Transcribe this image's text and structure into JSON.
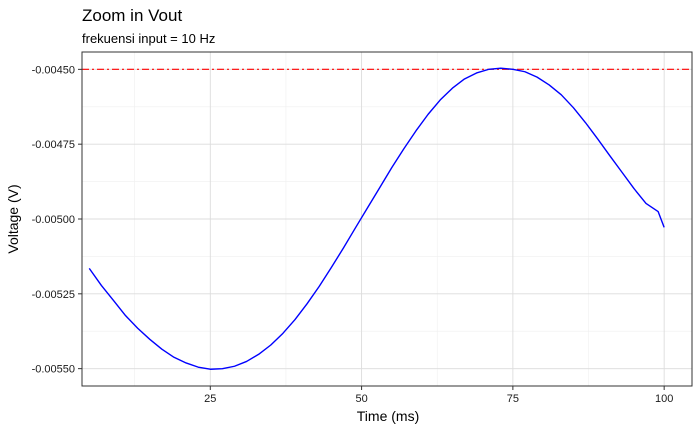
{
  "chart_data": {
    "type": "line",
    "title": "Zoom in Vout",
    "subtitle": "frekuensi input = 10 Hz",
    "xlabel": "Time (ms)",
    "ylabel": "Voltage (V)",
    "xlim": [
      3.8,
      104.6
    ],
    "ylim": [
      -0.005558,
      -0.004442
    ],
    "x_ticks": [
      25,
      50,
      75,
      100
    ],
    "x_tick_labels": [
      "25",
      "50",
      "75",
      "100"
    ],
    "y_ticks": [
      -0.0045,
      -0.00475,
      -0.005,
      -0.00525,
      -0.0055
    ],
    "y_tick_labels": [
      "-0.00450",
      "-0.00475",
      "-0.00500",
      "-0.00525",
      "-0.00550"
    ],
    "grid": true,
    "series": [
      {
        "color": "#0000ff",
        "points": [
          [
            5,
            -0.005165
          ],
          [
            7,
            -0.005222
          ],
          [
            9,
            -0.005272
          ],
          [
            11,
            -0.005323
          ],
          [
            13,
            -0.005365
          ],
          [
            15,
            -0.005402
          ],
          [
            17,
            -0.005435
          ],
          [
            19,
            -0.005462
          ],
          [
            21,
            -0.005481
          ],
          [
            23,
            -0.005495
          ],
          [
            25,
            -0.005502
          ],
          [
            27,
            -0.0055
          ],
          [
            29,
            -0.005492
          ],
          [
            31,
            -0.005476
          ],
          [
            33,
            -0.005452
          ],
          [
            35,
            -0.005421
          ],
          [
            37,
            -0.005382
          ],
          [
            39,
            -0.005336
          ],
          [
            41,
            -0.005283
          ],
          [
            43,
            -0.005225
          ],
          [
            45,
            -0.005162
          ],
          [
            47,
            -0.005097
          ],
          [
            49,
            -0.005029
          ],
          [
            51,
            -0.004962
          ],
          [
            53,
            -0.004895
          ],
          [
            55,
            -0.004828
          ],
          [
            57,
            -0.004765
          ],
          [
            59,
            -0.004705
          ],
          [
            61,
            -0.00465
          ],
          [
            63,
            -0.004602
          ],
          [
            65,
            -0.004563
          ],
          [
            67,
            -0.004532
          ],
          [
            69,
            -0.004512
          ],
          [
            71,
            -0.0045
          ],
          [
            73,
            -0.004496
          ],
          [
            75,
            -0.0045
          ],
          [
            77,
            -0.004508
          ],
          [
            79,
            -0.004526
          ],
          [
            81,
            -0.004552
          ],
          [
            83,
            -0.004585
          ],
          [
            85,
            -0.004628
          ],
          [
            87,
            -0.004678
          ],
          [
            89,
            -0.004732
          ],
          [
            91,
            -0.004788
          ],
          [
            93,
            -0.004843
          ],
          [
            95,
            -0.004898
          ],
          [
            97,
            -0.004948
          ],
          [
            99,
            -0.004975
          ],
          [
            100,
            -0.005028
          ]
        ]
      }
    ],
    "reference_line": {
      "y": -0.0045,
      "color": "#ff0000",
      "style": "dashdot"
    }
  }
}
